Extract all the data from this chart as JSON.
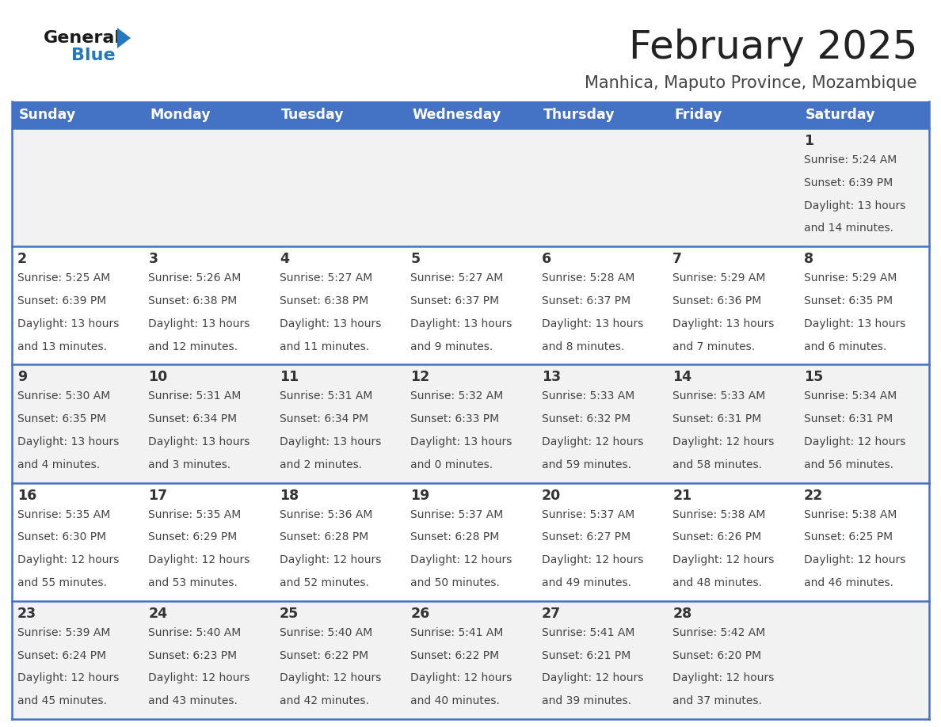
{
  "title": "February 2025",
  "subtitle": "Manhica, Maputo Province, Mozambique",
  "header_bg": "#4472C4",
  "header_text_color": "#FFFFFF",
  "cell_bg_light": "#F2F2F2",
  "cell_bg_white": "#FFFFFF",
  "day_headers": [
    "Sunday",
    "Monday",
    "Tuesday",
    "Wednesday",
    "Thursday",
    "Friday",
    "Saturday"
  ],
  "title_color": "#222222",
  "subtitle_color": "#444444",
  "day_number_color": "#333333",
  "cell_text_color": "#444444",
  "logo_general_color": "#1a1a1a",
  "logo_blue_color": "#2478BE",
  "divider_color": "#4472C4",
  "calendar": [
    [
      {
        "day": "",
        "sunrise": "",
        "sunset": "",
        "daylight_h": "",
        "daylight_m": ""
      },
      {
        "day": "",
        "sunrise": "",
        "sunset": "",
        "daylight_h": "",
        "daylight_m": ""
      },
      {
        "day": "",
        "sunrise": "",
        "sunset": "",
        "daylight_h": "",
        "daylight_m": ""
      },
      {
        "day": "",
        "sunrise": "",
        "sunset": "",
        "daylight_h": "",
        "daylight_m": ""
      },
      {
        "day": "",
        "sunrise": "",
        "sunset": "",
        "daylight_h": "",
        "daylight_m": ""
      },
      {
        "day": "",
        "sunrise": "",
        "sunset": "",
        "daylight_h": "",
        "daylight_m": ""
      },
      {
        "day": "1",
        "sunrise": "5:24 AM",
        "sunset": "6:39 PM",
        "daylight_h": "13",
        "daylight_m": "14"
      }
    ],
    [
      {
        "day": "2",
        "sunrise": "5:25 AM",
        "sunset": "6:39 PM",
        "daylight_h": "13",
        "daylight_m": "13"
      },
      {
        "day": "3",
        "sunrise": "5:26 AM",
        "sunset": "6:38 PM",
        "daylight_h": "13",
        "daylight_m": "12"
      },
      {
        "day": "4",
        "sunrise": "5:27 AM",
        "sunset": "6:38 PM",
        "daylight_h": "13",
        "daylight_m": "11"
      },
      {
        "day": "5",
        "sunrise": "5:27 AM",
        "sunset": "6:37 PM",
        "daylight_h": "13",
        "daylight_m": "9"
      },
      {
        "day": "6",
        "sunrise": "5:28 AM",
        "sunset": "6:37 PM",
        "daylight_h": "13",
        "daylight_m": "8"
      },
      {
        "day": "7",
        "sunrise": "5:29 AM",
        "sunset": "6:36 PM",
        "daylight_h": "13",
        "daylight_m": "7"
      },
      {
        "day": "8",
        "sunrise": "5:29 AM",
        "sunset": "6:35 PM",
        "daylight_h": "13",
        "daylight_m": "6"
      }
    ],
    [
      {
        "day": "9",
        "sunrise": "5:30 AM",
        "sunset": "6:35 PM",
        "daylight_h": "13",
        "daylight_m": "4"
      },
      {
        "day": "10",
        "sunrise": "5:31 AM",
        "sunset": "6:34 PM",
        "daylight_h": "13",
        "daylight_m": "3"
      },
      {
        "day": "11",
        "sunrise": "5:31 AM",
        "sunset": "6:34 PM",
        "daylight_h": "13",
        "daylight_m": "2"
      },
      {
        "day": "12",
        "sunrise": "5:32 AM",
        "sunset": "6:33 PM",
        "daylight_h": "13",
        "daylight_m": "0"
      },
      {
        "day": "13",
        "sunrise": "5:33 AM",
        "sunset": "6:32 PM",
        "daylight_h": "12",
        "daylight_m": "59"
      },
      {
        "day": "14",
        "sunrise": "5:33 AM",
        "sunset": "6:31 PM",
        "daylight_h": "12",
        "daylight_m": "58"
      },
      {
        "day": "15",
        "sunrise": "5:34 AM",
        "sunset": "6:31 PM",
        "daylight_h": "12",
        "daylight_m": "56"
      }
    ],
    [
      {
        "day": "16",
        "sunrise": "5:35 AM",
        "sunset": "6:30 PM",
        "daylight_h": "12",
        "daylight_m": "55"
      },
      {
        "day": "17",
        "sunrise": "5:35 AM",
        "sunset": "6:29 PM",
        "daylight_h": "12",
        "daylight_m": "53"
      },
      {
        "day": "18",
        "sunrise": "5:36 AM",
        "sunset": "6:28 PM",
        "daylight_h": "12",
        "daylight_m": "52"
      },
      {
        "day": "19",
        "sunrise": "5:37 AM",
        "sunset": "6:28 PM",
        "daylight_h": "12",
        "daylight_m": "50"
      },
      {
        "day": "20",
        "sunrise": "5:37 AM",
        "sunset": "6:27 PM",
        "daylight_h": "12",
        "daylight_m": "49"
      },
      {
        "day": "21",
        "sunrise": "5:38 AM",
        "sunset": "6:26 PM",
        "daylight_h": "12",
        "daylight_m": "48"
      },
      {
        "day": "22",
        "sunrise": "5:38 AM",
        "sunset": "6:25 PM",
        "daylight_h": "12",
        "daylight_m": "46"
      }
    ],
    [
      {
        "day": "23",
        "sunrise": "5:39 AM",
        "sunset": "6:24 PM",
        "daylight_h": "12",
        "daylight_m": "45"
      },
      {
        "day": "24",
        "sunrise": "5:40 AM",
        "sunset": "6:23 PM",
        "daylight_h": "12",
        "daylight_m": "43"
      },
      {
        "day": "25",
        "sunrise": "5:40 AM",
        "sunset": "6:22 PM",
        "daylight_h": "12",
        "daylight_m": "42"
      },
      {
        "day": "26",
        "sunrise": "5:41 AM",
        "sunset": "6:22 PM",
        "daylight_h": "12",
        "daylight_m": "40"
      },
      {
        "day": "27",
        "sunrise": "5:41 AM",
        "sunset": "6:21 PM",
        "daylight_h": "12",
        "daylight_m": "39"
      },
      {
        "day": "28",
        "sunrise": "5:42 AM",
        "sunset": "6:20 PM",
        "daylight_h": "12",
        "daylight_m": "37"
      },
      {
        "day": "",
        "sunrise": "",
        "sunset": "",
        "daylight_h": "",
        "daylight_m": ""
      }
    ]
  ]
}
